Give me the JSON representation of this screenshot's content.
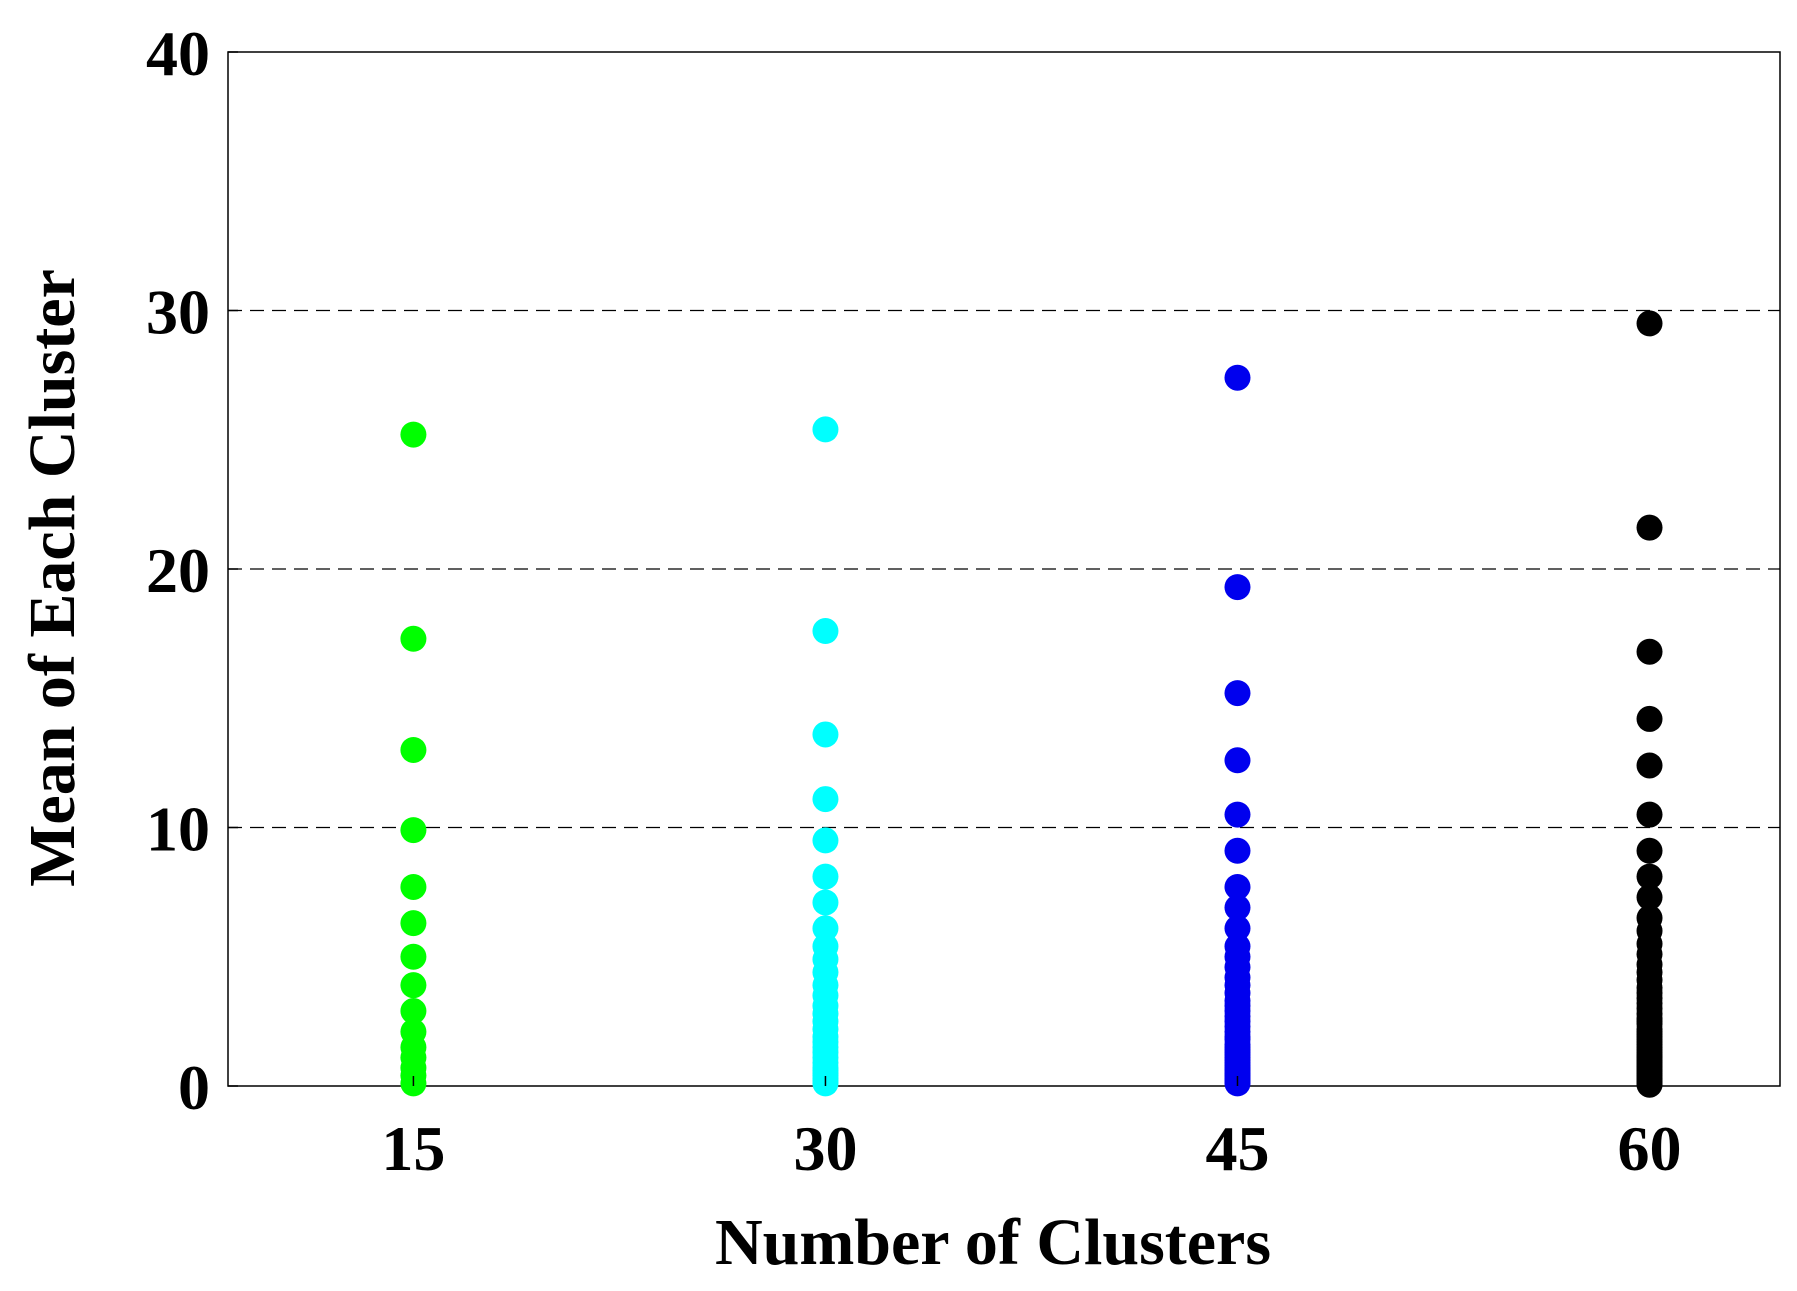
{
  "chart_data": {
    "type": "scatter",
    "title": "",
    "xlabel": "Number of Clusters",
    "ylabel": "Mean of Each Cluster",
    "xlim": [
      8.25,
      64.75
    ],
    "ylim": [
      0,
      40
    ],
    "xticks": [
      15,
      30,
      45,
      60
    ],
    "yticks": [
      0,
      10,
      20,
      30,
      40
    ],
    "grid": "dashed horizontal lines at y = 10, 20, 30",
    "grid_lines": [
      10,
      20,
      30
    ],
    "legend": "none",
    "series": [
      {
        "x": 15,
        "color": "#00ff00",
        "values": [
          25.2,
          17.3,
          13.0,
          9.9,
          7.7,
          6.3,
          5.0,
          3.9,
          2.9,
          2.1,
          1.5,
          1.1,
          0.7,
          0.4,
          0.1
        ]
      },
      {
        "x": 30,
        "color": "#00ffff",
        "values": [
          25.4,
          17.6,
          13.6,
          11.1,
          9.5,
          8.1,
          7.1,
          6.1,
          5.4,
          4.9,
          4.4,
          3.9,
          3.5,
          3.1,
          2.8,
          2.5,
          2.2,
          1.9,
          1.7,
          1.5,
          1.3,
          1.1,
          0.9,
          0.7,
          0.6,
          0.5,
          0.4,
          0.3,
          0.2,
          0.1
        ]
      },
      {
        "x": 45,
        "color": "#0000ee",
        "values": [
          27.4,
          19.3,
          15.2,
          12.6,
          10.5,
          9.1,
          7.7,
          6.9,
          6.1,
          5.4,
          5.0,
          4.6,
          4.2,
          3.9,
          3.6,
          3.3,
          3.1,
          2.9,
          2.7,
          2.5,
          2.3,
          2.1,
          1.9,
          1.8,
          1.6,
          1.5,
          1.4,
          1.3,
          1.2,
          1.1,
          1.0,
          0.9,
          0.8,
          0.7,
          0.65,
          0.6,
          0.5,
          0.45,
          0.4,
          0.35,
          0.3,
          0.25,
          0.2,
          0.15,
          0.1
        ]
      },
      {
        "x": 60,
        "color": "#000000",
        "values": [
          29.5,
          21.6,
          16.8,
          14.2,
          12.4,
          10.5,
          9.1,
          8.1,
          7.3,
          6.5,
          6.0,
          5.5,
          5.1,
          4.7,
          4.4,
          4.1,
          3.8,
          3.6,
          3.4,
          3.2,
          3.0,
          2.8,
          2.6,
          2.5,
          2.4,
          2.2,
          2.1,
          2.0,
          1.9,
          1.8,
          1.7,
          1.6,
          1.5,
          1.4,
          1.3,
          1.2,
          1.15,
          1.1,
          1.0,
          0.95,
          0.9,
          0.85,
          0.8,
          0.75,
          0.7,
          0.65,
          0.6,
          0.55,
          0.5,
          0.45,
          0.4,
          0.35,
          0.3,
          0.27,
          0.24,
          0.2,
          0.17,
          0.14,
          0.1,
          0.05
        ]
      }
    ]
  }
}
